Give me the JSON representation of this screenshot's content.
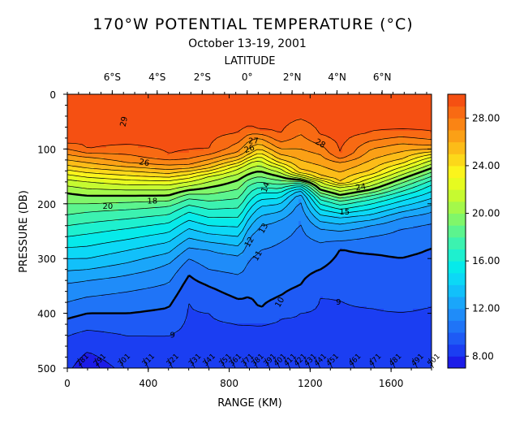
{
  "chart_data": {
    "type": "heatmap",
    "title": "170°W POTENTIAL TEMPERATURE (°C)",
    "subtitle": "October 13-19, 2001",
    "top_axis_label": "LATITUDE",
    "xlabel": "RANGE (KM)",
    "ylabel": "PRESSURE (DB)",
    "xlim": [
      0,
      1800
    ],
    "ylim": [
      500,
      0
    ],
    "x_ticks": [
      0,
      400,
      800,
      1200,
      1600
    ],
    "x_tick_labels": [
      "0",
      "400",
      "800",
      "1200",
      "1600"
    ],
    "y_ticks": [
      0,
      100,
      200,
      300,
      400,
      500
    ],
    "y_tick_labels": [
      "0",
      "100",
      "200",
      "300",
      "400",
      "500"
    ],
    "top_ticks": [
      {
        "label": "6°S",
        "x": 222
      },
      {
        "label": "4°S",
        "x": 444
      },
      {
        "label": "2°S",
        "x": 667
      },
      {
        "label": "0°",
        "x": 889
      },
      {
        "label": "2°N",
        "x": 1111
      },
      {
        "label": "4°N",
        "x": 1333
      },
      {
        "label": "6°N",
        "x": 1556
      }
    ],
    "colorbar": {
      "min": 7.0,
      "max": 30.0,
      "tick_values": [
        8,
        12,
        16,
        20,
        24,
        28
      ],
      "tick_labels": [
        "8.00",
        "12.00",
        "16.00",
        "20.00",
        "24.00",
        "28.00"
      ],
      "levels": [
        {
          "t": 7,
          "color": "#1c1ce8"
        },
        {
          "t": 8,
          "color": "#1b3ef2"
        },
        {
          "t": 9,
          "color": "#1e5af5"
        },
        {
          "t": 10,
          "color": "#1f74f7"
        },
        {
          "t": 11,
          "color": "#1f8cf9"
        },
        {
          "t": 12,
          "color": "#1aa6fa"
        },
        {
          "t": 13,
          "color": "#12c0fa"
        },
        {
          "t": 14,
          "color": "#0cd8f6"
        },
        {
          "t": 15,
          "color": "#06eaea"
        },
        {
          "t": 16,
          "color": "#1ef0cf"
        },
        {
          "t": 17,
          "color": "#3cf2b0"
        },
        {
          "t": 18,
          "color": "#5cf48e"
        },
        {
          "t": 19,
          "color": "#80f66a"
        },
        {
          "t": 20,
          "color": "#a4f84a"
        },
        {
          "t": 21,
          "color": "#c6fa30"
        },
        {
          "t": 22,
          "color": "#e6fb20"
        },
        {
          "t": 23,
          "color": "#fbf41c"
        },
        {
          "t": 24,
          "color": "#fcd81a"
        },
        {
          "t": 25,
          "color": "#fcbc18"
        },
        {
          "t": 26,
          "color": "#fba016"
        },
        {
          "t": 27,
          "color": "#fa8414"
        },
        {
          "t": 28,
          "color": "#f86a13"
        },
        {
          "t": 29,
          "color": "#f55012"
        },
        {
          "t": 30,
          "color": "#f03a10"
        }
      ]
    },
    "profiles": [
      {
        "x": 0,
        "d": [
          [
            0,
            30
          ],
          [
            90,
            29
          ],
          [
            110,
            27
          ],
          [
            130,
            25
          ],
          [
            155,
            22
          ],
          [
            180,
            20
          ],
          [
            220,
            18
          ],
          [
            260,
            16
          ],
          [
            300,
            14
          ],
          [
            345,
            12
          ],
          [
            380,
            11
          ],
          [
            410,
            10
          ],
          [
            440,
            9
          ],
          [
            500,
            8.2
          ]
        ]
      },
      {
        "x": 100,
        "d": [
          [
            0,
            30
          ],
          [
            100,
            29
          ],
          [
            115,
            27
          ],
          [
            135,
            25
          ],
          [
            160,
            22
          ],
          [
            185,
            20
          ],
          [
            215,
            18
          ],
          [
            255,
            16
          ],
          [
            300,
            14
          ],
          [
            340,
            12
          ],
          [
            370,
            11
          ],
          [
            400,
            10
          ],
          [
            430,
            9
          ],
          [
            470,
            8
          ],
          [
            500,
            7.4
          ]
        ]
      },
      {
        "x": 300,
        "d": [
          [
            0,
            30
          ],
          [
            95,
            29
          ],
          [
            125,
            27
          ],
          [
            140,
            25
          ],
          [
            165,
            22
          ],
          [
            185,
            20
          ],
          [
            210,
            18
          ],
          [
            245,
            16
          ],
          [
            285,
            14
          ],
          [
            330,
            12
          ],
          [
            360,
            11
          ],
          [
            400,
            10
          ],
          [
            440,
            9
          ],
          [
            500,
            8.3
          ]
        ]
      },
      {
        "x": 500,
        "d": [
          [
            0,
            30
          ],
          [
            110,
            29
          ],
          [
            130,
            27
          ],
          [
            145,
            25
          ],
          [
            165,
            22
          ],
          [
            185,
            20
          ],
          [
            205,
            18
          ],
          [
            235,
            16
          ],
          [
            270,
            14
          ],
          [
            310,
            12
          ],
          [
            345,
            11
          ],
          [
            390,
            10
          ],
          [
            440,
            9
          ],
          [
            500,
            8.5
          ]
        ]
      },
      {
        "x": 600,
        "d": [
          [
            0,
            30
          ],
          [
            105,
            29
          ],
          [
            130,
            27
          ],
          [
            140,
            25
          ],
          [
            160,
            22
          ],
          [
            175,
            20
          ],
          [
            190,
            18
          ],
          [
            215,
            16
          ],
          [
            245,
            14
          ],
          [
            280,
            12
          ],
          [
            300,
            11
          ],
          [
            330,
            10
          ],
          [
            380,
            9
          ],
          [
            500,
            8.6
          ]
        ]
      },
      {
        "x": 700,
        "d": [
          [
            0,
            30
          ],
          [
            100,
            29
          ],
          [
            120,
            27
          ],
          [
            135,
            25
          ],
          [
            150,
            22
          ],
          [
            170,
            20
          ],
          [
            195,
            18
          ],
          [
            225,
            16
          ],
          [
            255,
            14
          ],
          [
            285,
            12
          ],
          [
            320,
            11
          ],
          [
            350,
            10
          ],
          [
            400,
            9
          ],
          [
            500,
            8.5
          ]
        ]
      },
      {
        "x": 850,
        "d": [
          [
            0,
            30
          ],
          [
            70,
            29
          ],
          [
            105,
            27
          ],
          [
            120,
            25
          ],
          [
            135,
            22
          ],
          [
            155,
            20
          ],
          [
            190,
            18
          ],
          [
            225,
            16
          ],
          [
            260,
            14
          ],
          [
            295,
            12
          ],
          [
            330,
            11
          ],
          [
            375,
            10
          ],
          [
            420,
            9
          ],
          [
            500,
            8.4
          ]
        ]
      },
      {
        "x": 900,
        "d": [
          [
            0,
            30
          ],
          [
            60,
            29
          ],
          [
            85,
            27
          ],
          [
            110,
            25
          ],
          [
            125,
            22
          ],
          [
            145,
            20
          ],
          [
            165,
            18
          ],
          [
            195,
            16
          ],
          [
            225,
            14
          ],
          [
            260,
            12
          ],
          [
            300,
            11
          ],
          [
            370,
            10
          ],
          [
            420,
            9
          ],
          [
            500,
            8.5
          ]
        ]
      },
      {
        "x": 950,
        "d": [
          [
            0,
            30
          ],
          [
            65,
            29
          ],
          [
            80,
            27
          ],
          [
            100,
            25
          ],
          [
            120,
            22
          ],
          [
            140,
            20
          ],
          [
            160,
            18
          ],
          [
            180,
            16
          ],
          [
            205,
            14
          ],
          [
            240,
            12
          ],
          [
            285,
            11
          ],
          [
            395,
            10
          ],
          [
            420,
            9
          ],
          [
            500,
            8.5
          ]
        ]
      },
      {
        "x": 1050,
        "d": [
          [
            0,
            30
          ],
          [
            75,
            29
          ],
          [
            100,
            27
          ],
          [
            120,
            25
          ],
          [
            135,
            22
          ],
          [
            150,
            20
          ],
          [
            165,
            18
          ],
          [
            180,
            16
          ],
          [
            200,
            14
          ],
          [
            230,
            12
          ],
          [
            270,
            11
          ],
          [
            370,
            10
          ],
          [
            410,
            9
          ],
          [
            500,
            8.6
          ]
        ]
      },
      {
        "x": 1150,
        "d": [
          [
            0,
            30
          ],
          [
            45,
            29
          ],
          [
            100,
            27
          ],
          [
            140,
            25
          ],
          [
            150,
            22
          ],
          [
            157,
            20
          ],
          [
            162,
            18
          ],
          [
            168,
            16
          ],
          [
            175,
            14
          ],
          [
            190,
            12
          ],
          [
            230,
            11
          ],
          [
            350,
            10
          ],
          [
            400,
            9
          ],
          [
            500,
            8.6
          ]
        ]
      },
      {
        "x": 1250,
        "d": [
          [
            0,
            30
          ],
          [
            75,
            29
          ],
          [
            110,
            27
          ],
          [
            150,
            25
          ],
          [
            160,
            22
          ],
          [
            175,
            20
          ],
          [
            185,
            18
          ],
          [
            200,
            16
          ],
          [
            220,
            14
          ],
          [
            245,
            12
          ],
          [
            270,
            11
          ],
          [
            320,
            10
          ],
          [
            370,
            9
          ],
          [
            500,
            8.7
          ]
        ]
      },
      {
        "x": 1350,
        "d": [
          [
            0,
            30
          ],
          [
            110,
            29
          ],
          [
            125,
            27
          ],
          [
            160,
            25
          ],
          [
            170,
            22
          ],
          [
            185,
            20
          ],
          [
            195,
            18
          ],
          [
            210,
            16
          ],
          [
            225,
            14
          ],
          [
            250,
            12
          ],
          [
            268,
            11
          ],
          [
            282,
            10
          ],
          [
            375,
            9
          ],
          [
            500,
            8.7
          ]
        ]
      },
      {
        "x": 1500,
        "d": [
          [
            0,
            30
          ],
          [
            70,
            29
          ],
          [
            100,
            27
          ],
          [
            140,
            25
          ],
          [
            160,
            22
          ],
          [
            175,
            20
          ],
          [
            185,
            18
          ],
          [
            200,
            16
          ],
          [
            220,
            14
          ],
          [
            240,
            12
          ],
          [
            260,
            11
          ],
          [
            290,
            10
          ],
          [
            390,
            9
          ],
          [
            500,
            8.8
          ]
        ]
      },
      {
        "x": 1650,
        "d": [
          [
            0,
            30
          ],
          [
            65,
            29
          ],
          [
            90,
            27
          ],
          [
            120,
            25
          ],
          [
            140,
            22
          ],
          [
            155,
            20
          ],
          [
            170,
            18
          ],
          [
            185,
            16
          ],
          [
            205,
            14
          ],
          [
            225,
            12
          ],
          [
            245,
            11
          ],
          [
            298,
            10
          ],
          [
            395,
            9
          ],
          [
            500,
            8.8
          ]
        ]
      },
      {
        "x": 1800,
        "d": [
          [
            0,
            30
          ],
          [
            70,
            29
          ],
          [
            95,
            27
          ],
          [
            105,
            25
          ],
          [
            120,
            22
          ],
          [
            135,
            20
          ],
          [
            150,
            18
          ],
          [
            165,
            16
          ],
          [
            190,
            14
          ],
          [
            215,
            12
          ],
          [
            235,
            11
          ],
          [
            280,
            10
          ],
          [
            385,
            9
          ],
          [
            500,
            8.8
          ]
        ]
      }
    ],
    "contour_levels": [
      8,
      9,
      10,
      11,
      12,
      13,
      14,
      15,
      16,
      17,
      18,
      19,
      20,
      21,
      22,
      23,
      24,
      25,
      26,
      27,
      28,
      29
    ],
    "bold_contours": [
      10,
      20
    ],
    "contour_labels": [
      {
        "text": "29",
        "x": 280,
        "p": 50,
        "angle": -78
      },
      {
        "text": "28",
        "x": 1250,
        "p": 90,
        "angle": 30
      },
      {
        "text": "27",
        "x": 920,
        "p": 85,
        "angle": 0
      },
      {
        "text": "26",
        "x": 380,
        "p": 125,
        "angle": 10
      },
      {
        "text": "26",
        "x": 900,
        "p": 100,
        "angle": -20
      },
      {
        "text": "24",
        "x": 1450,
        "p": 170,
        "angle": -10
      },
      {
        "text": "18",
        "x": 420,
        "p": 195,
        "angle": 0
      },
      {
        "text": "20",
        "x": 200,
        "p": 205,
        "angle": 0
      },
      {
        "text": "14",
        "x": 980,
        "p": 170,
        "angle": -70
      },
      {
        "text": "13",
        "x": 970,
        "p": 245,
        "angle": -60
      },
      {
        "text": "12",
        "x": 900,
        "p": 270,
        "angle": -60
      },
      {
        "text": "11",
        "x": 940,
        "p": 295,
        "angle": -60
      },
      {
        "text": "10",
        "x": 1050,
        "p": 380,
        "angle": -60
      },
      {
        "text": "9",
        "x": 520,
        "p": 440,
        "angle": 0
      },
      {
        "text": "9",
        "x": 1340,
        "p": 380,
        "angle": 0
      },
      {
        "text": "15",
        "x": 1370,
        "p": 215,
        "angle": 0
      }
    ],
    "station_labels": [
      "281",
      "291",
      "301",
      "311",
      "321",
      "331",
      "341",
      "351",
      "361",
      "371",
      "381",
      "391",
      "401",
      "411",
      "421",
      "431",
      "441",
      "451",
      "461",
      "471",
      "481",
      "491",
      "501"
    ],
    "station_x": [
      75,
      160,
      280,
      400,
      520,
      630,
      700,
      780,
      830,
      890,
      940,
      1000,
      1050,
      1100,
      1150,
      1200,
      1250,
      1310,
      1420,
      1520,
      1620,
      1730,
      1810
    ]
  }
}
